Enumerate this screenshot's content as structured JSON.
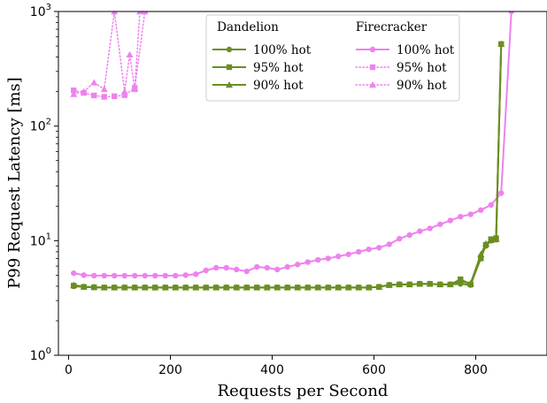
{
  "chart_data": {
    "type": "line",
    "xlabel": "Requests per Second",
    "ylabel": "P99 Request Latency [ms]",
    "xlim": [
      -20,
      940
    ],
    "ylim": [
      1,
      1000
    ],
    "yscale": "log",
    "x_ticks": [
      {
        "value": 0,
        "label": "0"
      },
      {
        "value": 200,
        "label": "200"
      },
      {
        "value": 400,
        "label": "400"
      },
      {
        "value": 600,
        "label": "600"
      },
      {
        "value": 800,
        "label": "800"
      }
    ],
    "y_ticks": [
      {
        "value": 1,
        "base": "10",
        "exp": "0"
      },
      {
        "value": 10,
        "base": "10",
        "exp": "1"
      },
      {
        "value": 100,
        "base": "10",
        "exp": "2"
      },
      {
        "value": 1000,
        "base": "10",
        "exp": "3"
      }
    ],
    "grid": false,
    "legend": {
      "placement": "top-center",
      "groups": [
        {
          "title": "Dandelion",
          "entries": [
            "100% hot",
            "95% hot",
            "90% hot"
          ]
        },
        {
          "title": "Firecracker",
          "entries": [
            "100% hot",
            "95% hot",
            "90% hot"
          ]
        }
      ]
    },
    "colors": {
      "dandelion": "#6b8e23",
      "firecracker": "#ee82ee"
    },
    "series": [
      {
        "group": "Dandelion",
        "label": "100% hot",
        "marker": "circle",
        "line": "solid",
        "color": "#6b8e23",
        "x": [
          10,
          30,
          50,
          70,
          90,
          110,
          130,
          150,
          170,
          190,
          210,
          230,
          250,
          270,
          290,
          310,
          330,
          350,
          370,
          390,
          410,
          430,
          450,
          470,
          490,
          510,
          530,
          550,
          570,
          590,
          610,
          630,
          650,
          670,
          690,
          710,
          730,
          750,
          770,
          790,
          810,
          820,
          830,
          840,
          850
        ],
        "y": [
          4.0,
          3.95,
          3.92,
          3.9,
          3.9,
          3.9,
          3.9,
          3.9,
          3.9,
          3.9,
          3.9,
          3.9,
          3.9,
          3.9,
          3.9,
          3.9,
          3.9,
          3.9,
          3.9,
          3.9,
          3.9,
          3.9,
          3.9,
          3.9,
          3.9,
          3.9,
          3.9,
          3.9,
          3.9,
          3.9,
          3.95,
          4.1,
          4.15,
          4.15,
          4.2,
          4.2,
          4.15,
          4.15,
          4.2,
          4.1,
          7.3,
          9.0,
          10.0,
          10.2,
          520
        ]
      },
      {
        "group": "Dandelion",
        "label": "95% hot",
        "marker": "square",
        "line": "solid",
        "color": "#6b8e23",
        "x": [
          10,
          30,
          50,
          70,
          90,
          110,
          130,
          150,
          170,
          190,
          210,
          230,
          250,
          270,
          290,
          310,
          330,
          350,
          370,
          390,
          410,
          430,
          450,
          470,
          490,
          510,
          530,
          550,
          570,
          590,
          610,
          630,
          650,
          670,
          690,
          710,
          730,
          750,
          770,
          790,
          810,
          820,
          830,
          840,
          850
        ],
        "y": [
          4.05,
          3.95,
          3.92,
          3.9,
          3.9,
          3.9,
          3.9,
          3.9,
          3.9,
          3.9,
          3.9,
          3.9,
          3.9,
          3.9,
          3.9,
          3.9,
          3.9,
          3.9,
          3.9,
          3.9,
          3.9,
          3.9,
          3.9,
          3.9,
          3.9,
          3.9,
          3.9,
          3.9,
          3.9,
          3.9,
          3.95,
          4.1,
          4.15,
          4.15,
          4.2,
          4.2,
          4.15,
          4.15,
          4.6,
          4.15,
          7.0,
          9.2,
          10.3,
          10.5,
          520
        ]
      },
      {
        "group": "Dandelion",
        "label": "90% hot",
        "marker": "triangle",
        "line": "solid",
        "color": "#6b8e23",
        "x": [
          10,
          30,
          50,
          70,
          90,
          110,
          130,
          150,
          170,
          190,
          210,
          230,
          250,
          270,
          290,
          310,
          330,
          350,
          370,
          390,
          410,
          430,
          450,
          470,
          490,
          510,
          530,
          550,
          570,
          590,
          610,
          630,
          650,
          670,
          690,
          710,
          730,
          750,
          770,
          790,
          810,
          820,
          830,
          840,
          850
        ],
        "y": [
          4.1,
          3.97,
          3.93,
          3.9,
          3.9,
          3.9,
          3.9,
          3.9,
          3.9,
          3.9,
          3.9,
          3.9,
          3.9,
          3.9,
          3.9,
          3.9,
          3.9,
          3.9,
          3.9,
          3.9,
          3.9,
          3.9,
          3.9,
          3.9,
          3.9,
          3.9,
          3.9,
          3.9,
          3.9,
          3.9,
          3.95,
          4.1,
          4.15,
          4.15,
          4.2,
          4.2,
          4.15,
          4.15,
          4.4,
          4.25,
          7.6,
          9.4,
          10.1,
          10.3,
          520
        ]
      },
      {
        "group": "Firecracker",
        "label": "100% hot",
        "marker": "circle",
        "line": "solid",
        "color": "#ee82ee",
        "x": [
          10,
          30,
          50,
          70,
          90,
          110,
          130,
          150,
          170,
          190,
          210,
          230,
          250,
          270,
          290,
          310,
          330,
          350,
          370,
          390,
          410,
          430,
          450,
          470,
          490,
          510,
          530,
          550,
          570,
          590,
          610,
          630,
          650,
          670,
          690,
          710,
          730,
          750,
          770,
          790,
          810,
          830,
          850,
          870
        ],
        "y": [
          5.2,
          5.0,
          4.95,
          4.95,
          4.95,
          4.95,
          4.95,
          4.95,
          4.95,
          4.95,
          4.95,
          5.0,
          5.1,
          5.5,
          5.8,
          5.8,
          5.6,
          5.4,
          5.9,
          5.8,
          5.6,
          5.9,
          6.2,
          6.5,
          6.8,
          7.0,
          7.3,
          7.6,
          8.0,
          8.4,
          8.7,
          9.3,
          10.4,
          11.2,
          12.1,
          12.8,
          13.9,
          15.0,
          16.2,
          17.0,
          18.5,
          20.5,
          26,
          1000
        ]
      },
      {
        "group": "Firecracker",
        "label": "95% hot",
        "marker": "square",
        "line": "dotted",
        "color": "#ee82ee",
        "x": [
          10,
          30,
          50,
          70,
          90,
          110,
          130,
          150
        ],
        "y": [
          205,
          195,
          185,
          180,
          182,
          186,
          215,
          1000
        ]
      },
      {
        "group": "Firecracker",
        "label": "90% hot",
        "marker": "triangle",
        "line": "dotted",
        "color": "#ee82ee",
        "x": [
          10,
          30,
          50,
          70,
          90,
          110,
          120,
          130,
          140
        ],
        "y": [
          190,
          200,
          240,
          210,
          1000,
          200,
          420,
          210,
          1000
        ]
      }
    ]
  }
}
